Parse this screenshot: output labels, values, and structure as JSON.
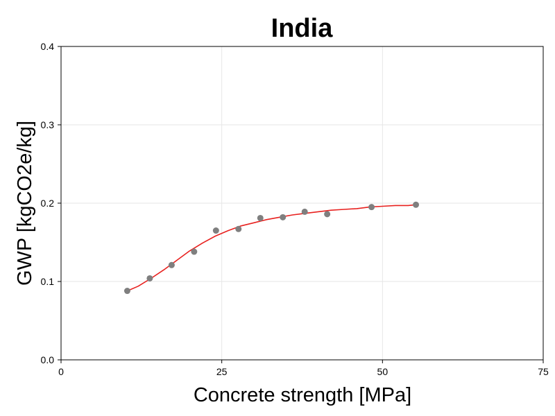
{
  "chart_data": {
    "type": "scatter",
    "title": "India",
    "xlabel": "Concrete strength [MPa]",
    "ylabel": "GWP [kgCO2e/kg]",
    "xlim": [
      0,
      75
    ],
    "ylim": [
      0,
      0.4
    ],
    "xticks": [
      0,
      25,
      50,
      75
    ],
    "yticks": [
      0.0,
      0.1,
      0.2,
      0.3,
      0.4
    ],
    "xtick_labels": [
      "0",
      "25",
      "50",
      "75"
    ],
    "ytick_labels": [
      "0.0",
      "0.1",
      "0.2",
      "0.3",
      "0.4"
    ],
    "grid": true,
    "legend": "none",
    "series": [
      {
        "type": "scatter",
        "color": "#7f7f7f",
        "x": [
          10.3,
          13.8,
          17.2,
          20.7,
          24.1,
          27.6,
          31.0,
          34.5,
          37.9,
          41.4,
          48.3,
          55.2
        ],
        "y": [
          0.088,
          0.104,
          0.121,
          0.138,
          0.165,
          0.167,
          0.181,
          0.182,
          0.189,
          0.186,
          0.195,
          0.198
        ]
      },
      {
        "type": "line",
        "color": "#e8201e",
        "x": [
          10.3,
          12,
          14,
          16,
          18,
          20,
          22,
          24,
          26,
          28,
          30,
          32,
          34,
          36,
          38,
          40,
          42,
          44,
          46,
          48,
          50,
          52,
          54,
          55.2
        ],
        "y": [
          0.088,
          0.094,
          0.104,
          0.115,
          0.127,
          0.139,
          0.149,
          0.158,
          0.165,
          0.171,
          0.175,
          0.179,
          0.182,
          0.185,
          0.187,
          0.189,
          0.191,
          0.192,
          0.193,
          0.195,
          0.196,
          0.197,
          0.197,
          0.198
        ]
      }
    ]
  }
}
